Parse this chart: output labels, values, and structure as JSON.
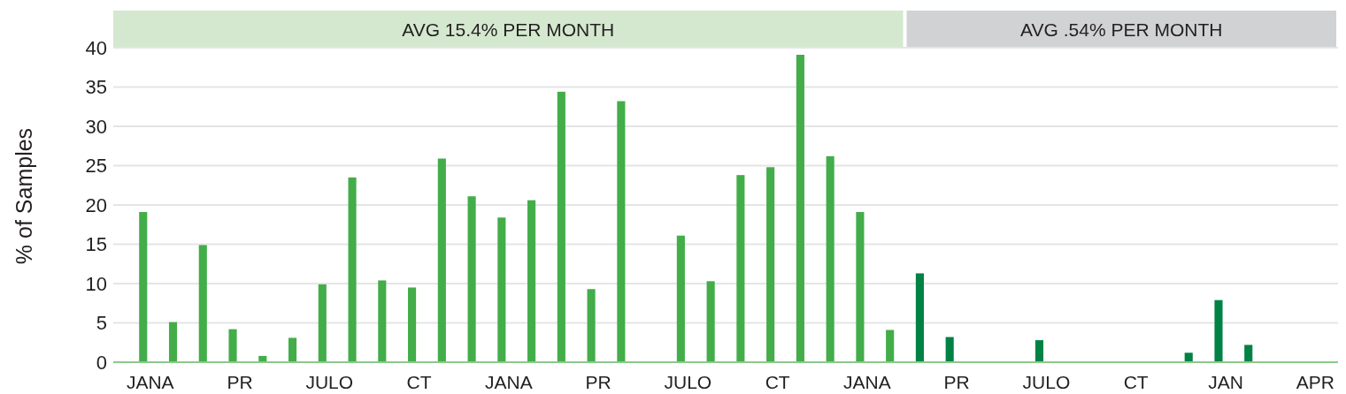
{
  "chart_data": {
    "type": "bar",
    "ylabel": "% of Samples",
    "categories": [
      "JANA",
      null,
      null,
      "PR",
      null,
      null,
      "JULO",
      null,
      null,
      "CT",
      null,
      null,
      "JANA",
      null,
      null,
      "PR",
      null,
      null,
      "JULO",
      null,
      null,
      "CT",
      null,
      null,
      "JANA",
      null,
      null,
      "PR",
      null,
      null,
      "JULO",
      null,
      null,
      "CT",
      null,
      null,
      "JAN",
      null,
      null,
      "APR"
    ],
    "values": [
      19.1,
      5.1,
      14.9,
      4.2,
      0.8,
      3.1,
      9.9,
      23.5,
      10.4,
      9.5,
      25.9,
      21.1,
      18.4,
      20.6,
      34.4,
      9.3,
      33.2,
      0,
      16.1,
      10.3,
      23.8,
      24.8,
      39.1,
      26.2,
      19.1,
      4.1,
      11.3,
      3.2,
      0,
      0,
      2.8,
      0,
      0,
      0,
      0,
      1.2,
      7.9,
      2.2,
      0,
      0
    ],
    "colors": [
      "#43ad49",
      "#43ad49",
      "#43ad49",
      "#43ad49",
      "#43ad49",
      "#43ad49",
      "#43ad49",
      "#43ad49",
      "#43ad49",
      "#43ad49",
      "#43ad49",
      "#43ad49",
      "#43ad49",
      "#43ad49",
      "#43ad49",
      "#43ad49",
      "#43ad49",
      "#43ad49",
      "#43ad49",
      "#43ad49",
      "#43ad49",
      "#43ad49",
      "#43ad49",
      "#43ad49",
      "#43ad49",
      "#43ad49",
      "#008244",
      "#008244",
      "#008244",
      "#008244",
      "#008244",
      "#008244",
      "#008244",
      "#008244",
      "#008244",
      "#008244",
      "#008244",
      "#008244",
      "#008244",
      "#008244"
    ],
    "ylim": [
      0,
      40
    ],
    "yticks": [
      0,
      5,
      10,
      15,
      20,
      25,
      30,
      35,
      40
    ],
    "grid": "y",
    "annotations": [
      "AVG 15.4% PER MONTH",
      "AVG .54% PER MONTH"
    ]
  }
}
